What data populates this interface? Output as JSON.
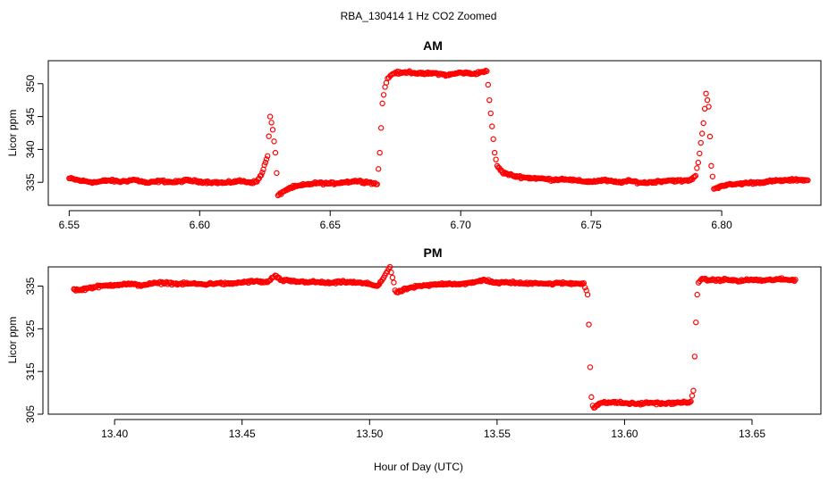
{
  "figure": {
    "title": "RBA_130414  1 Hz CO2 Zoomed",
    "xlabel": "Hour of Day (UTC)"
  },
  "colors": {
    "points": "#ff0000",
    "axis": "#000000",
    "background": "#ffffff"
  },
  "chart_data": [
    {
      "type": "scatter",
      "title": "AM",
      "xlabel": "",
      "ylabel": "Licor ppm",
      "xlim": [
        6.542,
        6.838
      ],
      "ylim": [
        331.5,
        353.5
      ],
      "xticks": [
        6.55,
        6.6,
        6.65,
        6.7,
        6.75,
        6.8
      ],
      "xtick_labels": [
        "6.55",
        "6.60",
        "6.65",
        "6.70",
        "6.75",
        "6.80"
      ],
      "yticks": [
        335,
        340,
        345,
        350
      ],
      "ytick_labels": [
        "335",
        "340",
        "345",
        "350"
      ],
      "grid": false,
      "series": [
        {
          "marker": "open-circle",
          "color": "#ff0000",
          "x": [
            6.55,
            6.555,
            6.56,
            6.565,
            6.57,
            6.575,
            6.58,
            6.585,
            6.59,
            6.595,
            6.6,
            6.605,
            6.61,
            6.615,
            6.62,
            6.622,
            6.624,
            6.626,
            6.627,
            6.628,
            6.629,
            6.63,
            6.632,
            6.635,
            6.64,
            6.645,
            6.65,
            6.655,
            6.66,
            6.665,
            6.668,
            6.669,
            6.67,
            6.671,
            6.672,
            6.673,
            6.674,
            6.675,
            6.677,
            6.68,
            6.685,
            6.69,
            6.695,
            6.7,
            6.705,
            6.708,
            6.71,
            6.711,
            6.712,
            6.713,
            6.714,
            6.716,
            6.72,
            6.725,
            6.73,
            6.735,
            6.74,
            6.745,
            6.75,
            6.755,
            6.76,
            6.765,
            6.77,
            6.775,
            6.78,
            6.785,
            6.788,
            6.79,
            6.791,
            6.792,
            6.793,
            6.794,
            6.795,
            6.796,
            6.797,
            6.8,
            6.805,
            6.81,
            6.815,
            6.82,
            6.825,
            6.83,
            6.833
          ],
          "y": [
            335.6,
            335.2,
            335.0,
            335.3,
            335.1,
            335.4,
            334.9,
            335.2,
            335.0,
            335.3,
            335.1,
            335.0,
            334.9,
            335.2,
            335.0,
            335.1,
            336.5,
            339.0,
            345.0,
            343.0,
            339.5,
            333.0,
            333.6,
            334.2,
            334.6,
            334.9,
            334.8,
            335.0,
            335.2,
            335.0,
            334.7,
            339.5,
            347.0,
            349.5,
            350.8,
            351.2,
            351.5,
            351.7,
            351.6,
            351.8,
            351.5,
            351.6,
            351.3,
            351.7,
            351.5,
            351.8,
            351.9,
            347.5,
            343.5,
            339.5,
            337.5,
            336.5,
            336.0,
            335.7,
            335.6,
            335.4,
            335.5,
            335.2,
            335.1,
            335.3,
            335.0,
            335.2,
            334.9,
            335.1,
            335.3,
            335.2,
            335.3,
            336.0,
            338.0,
            341.0,
            344.0,
            348.5,
            346.5,
            337.5,
            334.0,
            334.5,
            334.7,
            334.9,
            335.0,
            335.2,
            335.3,
            335.4,
            335.3
          ]
        }
      ]
    },
    {
      "type": "scatter",
      "title": "PM",
      "xlabel": "Hour of Day (UTC)",
      "ylabel": "Licor ppm",
      "xlim": [
        13.374,
        13.677
      ],
      "ylim": [
        305.0,
        339.5
      ],
      "xticks": [
        13.4,
        13.45,
        13.5,
        13.55,
        13.6,
        13.65
      ],
      "xtick_labels": [
        "13.40",
        "13.45",
        "13.50",
        "13.55",
        "13.60",
        "13.65"
      ],
      "yticks": [
        305,
        315,
        325,
        335
      ],
      "ytick_labels": [
        "305",
        "315",
        "325",
        "335"
      ],
      "grid": false,
      "series": [
        {
          "marker": "open-circle",
          "color": "#ff0000",
          "x": [
            13.384,
            13.386,
            13.39,
            13.395,
            13.4,
            13.405,
            13.41,
            13.415,
            13.42,
            13.425,
            13.43,
            13.435,
            13.44,
            13.445,
            13.45,
            13.455,
            13.46,
            13.462,
            13.463,
            13.465,
            13.47,
            13.475,
            13.48,
            13.485,
            13.49,
            13.495,
            13.5,
            13.503,
            13.505,
            13.506,
            13.507,
            13.508,
            13.509,
            13.51,
            13.511,
            13.515,
            13.52,
            13.525,
            13.53,
            13.535,
            13.54,
            13.545,
            13.55,
            13.555,
            13.56,
            13.565,
            13.57,
            13.575,
            13.58,
            13.584,
            13.5855,
            13.586,
            13.5865,
            13.587,
            13.5875,
            13.588,
            13.59,
            13.595,
            13.6,
            13.605,
            13.61,
            13.615,
            13.62,
            13.624,
            13.626,
            13.627,
            13.6275,
            13.628,
            13.6285,
            13.629,
            13.63,
            13.635,
            13.64,
            13.645,
            13.65,
            13.655,
            13.66,
            13.665,
            13.667
          ],
          "y": [
            334.3,
            334.0,
            334.6,
            335.0,
            335.3,
            335.5,
            335.2,
            335.6,
            335.8,
            335.5,
            335.6,
            335.4,
            335.7,
            335.5,
            335.9,
            336.1,
            335.9,
            337.0,
            337.5,
            336.4,
            336.1,
            336.0,
            335.9,
            335.7,
            336.0,
            335.8,
            335.5,
            335.0,
            336.5,
            337.5,
            338.5,
            339.5,
            337.0,
            334.0,
            333.5,
            334.5,
            335.0,
            335.3,
            335.6,
            335.5,
            335.7,
            336.5,
            335.7,
            335.9,
            335.6,
            335.8,
            335.5,
            335.7,
            335.6,
            335.7,
            333.0,
            326.0,
            316.0,
            309.0,
            307.0,
            306.5,
            307.5,
            307.8,
            307.6,
            307.4,
            307.7,
            307.5,
            307.6,
            307.8,
            308.0,
            310.5,
            318.5,
            326.5,
            333.0,
            335.8,
            336.5,
            336.4,
            336.5,
            336.2,
            336.5,
            336.3,
            336.6,
            336.4,
            336.5
          ]
        }
      ]
    }
  ]
}
